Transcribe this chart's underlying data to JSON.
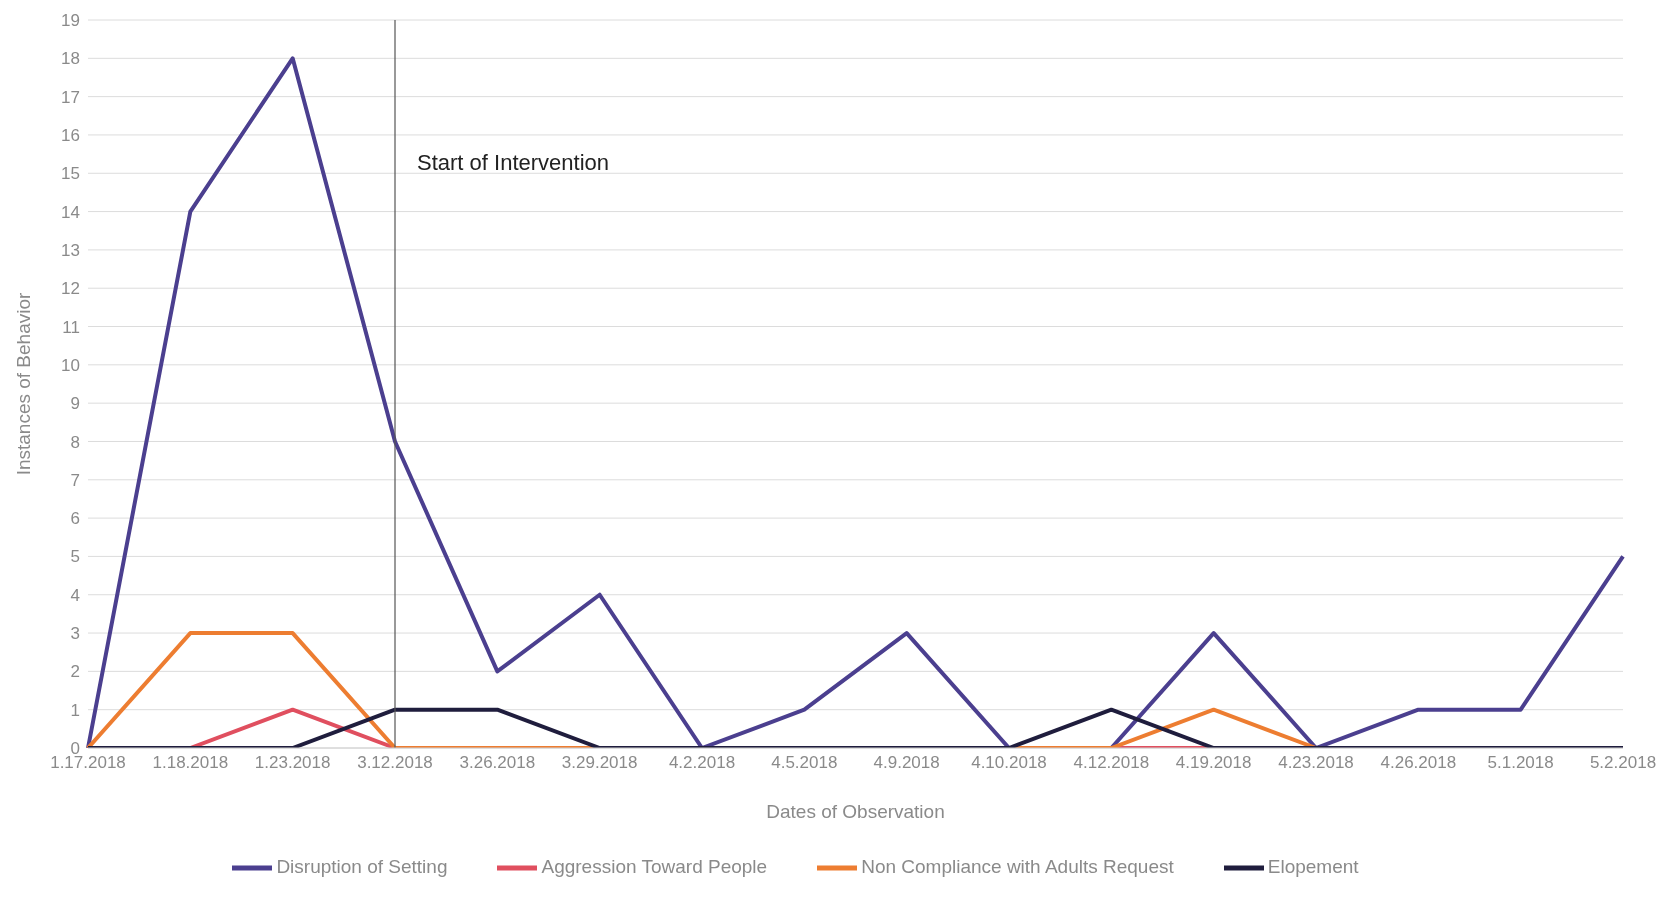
{
  "chart_data": {
    "type": "line",
    "xlabel": "Dates of Observation",
    "ylabel": "Instances of Behavior",
    "categories": [
      "1.17.2018",
      "1.18.2018",
      "1.23.2018",
      "3.12.2018",
      "3.26.2018",
      "3.29.2018",
      "4.2.2018",
      "4.5.2018",
      "4.9.2018",
      "4.10.2018",
      "4.12.2018",
      "4.19.2018",
      "4.23.2018",
      "4.26.2018",
      "5.1.2018",
      "5.2.2018"
    ],
    "series": [
      {
        "name": "Disruption of Setting",
        "color": "#4b3f8f",
        "values": [
          0,
          14,
          18,
          8,
          2,
          4,
          0,
          1,
          3,
          0,
          0,
          3,
          0,
          1,
          1,
          5
        ]
      },
      {
        "name": "Aggression Toward People",
        "color": "#e04f5f",
        "values": [
          null,
          0,
          1,
          0,
          null,
          null,
          null,
          null,
          null,
          0,
          0,
          0,
          0,
          null,
          null,
          null
        ]
      },
      {
        "name": "Non Compliance with Adults Request",
        "color": "#ed7d31",
        "values": [
          0,
          3,
          3,
          0,
          0,
          0,
          0,
          0,
          0,
          0,
          0,
          1,
          0,
          0,
          null,
          null
        ]
      },
      {
        "name": "Elopement",
        "color": "#1f1d3d",
        "values": [
          0,
          0,
          0,
          1,
          1,
          0,
          0,
          0,
          0,
          0,
          1,
          0,
          0,
          0,
          0,
          0
        ]
      }
    ],
    "ylim": [
      0,
      19
    ],
    "yticks": [
      0,
      1,
      2,
      3,
      4,
      5,
      6,
      7,
      8,
      9,
      10,
      11,
      12,
      13,
      14,
      15,
      16,
      17,
      18,
      19
    ],
    "grid": "y",
    "legend": "bottom",
    "marker": "none",
    "line_style": "solid",
    "ref_lines": [
      {
        "axis": "x",
        "value": "3.12.2018",
        "label": "Start of Intervention",
        "color": "#555555"
      }
    ]
  }
}
